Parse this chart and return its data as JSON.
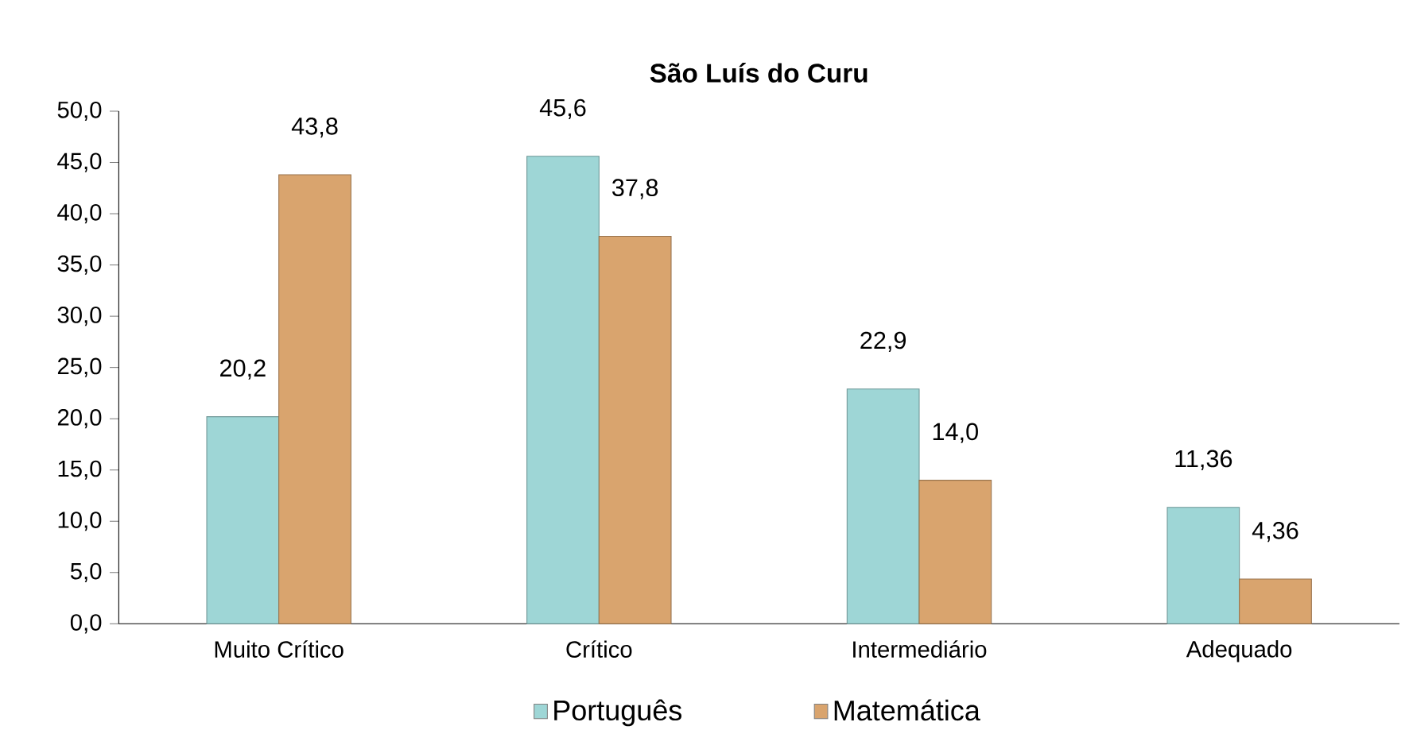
{
  "chart_data": {
    "type": "bar",
    "title": "São Luís do Curu",
    "categories": [
      "Muito Crítico",
      "Crítico",
      "Intermediário",
      "Adequado"
    ],
    "series": [
      {
        "name": "Português",
        "color": "#9ed6d6",
        "values": [
          20.2,
          45.6,
          22.9,
          11.36
        ],
        "value_labels": [
          "20,2",
          "45,6",
          "22,9",
          "11,36"
        ]
      },
      {
        "name": "Matemática",
        "color": "#d9a46e",
        "values": [
          43.8,
          37.8,
          14.0,
          4.36
        ],
        "value_labels": [
          "43,8",
          "37,8",
          "14,0",
          "4,36"
        ]
      }
    ],
    "ylim": [
      0,
      50
    ],
    "yticks": [
      {
        "value": 0,
        "label": "0,0"
      },
      {
        "value": 5,
        "label": "5,0"
      },
      {
        "value": 10,
        "label": "10,0"
      },
      {
        "value": 15,
        "label": "15,0"
      },
      {
        "value": 20,
        "label": "20,0"
      },
      {
        "value": 25,
        "label": "25,0"
      },
      {
        "value": 30,
        "label": "30,0"
      },
      {
        "value": 35,
        "label": "35,0"
      },
      {
        "value": 40,
        "label": "40,0"
      },
      {
        "value": 45,
        "label": "45,0"
      },
      {
        "value": 50,
        "label": "50,0"
      }
    ],
    "grid": false,
    "legend": "bottom"
  }
}
